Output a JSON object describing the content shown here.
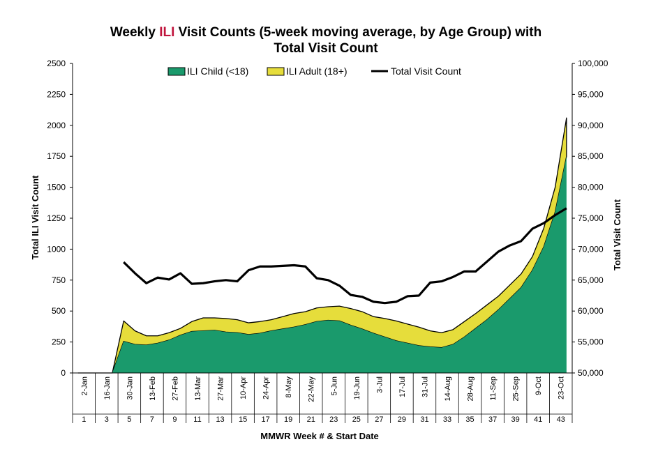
{
  "chart_data": {
    "type": "area",
    "title": {
      "part1": "Weekly ",
      "highlight": "ILI",
      "part2": " Visit Counts (5-week moving average, by Age Group) with",
      "line2": "Total Visit Count"
    },
    "highlight_color": "#c0143c",
    "xlabel": "MMWR Week # & Start Date",
    "ylabel_left": "Total ILI Visit Count",
    "ylabel_right": "Total Visit Count",
    "ylim_left": [
      0,
      2500
    ],
    "ylim_right": [
      50000,
      100000
    ],
    "yticks_left": [
      "0",
      "250",
      "500",
      "750",
      "1000",
      "1250",
      "1500",
      "1750",
      "2000",
      "2250",
      "2500"
    ],
    "yticks_right": [
      "50,000",
      "55,000",
      "60,000",
      "65,000",
      "70,000",
      "75,000",
      "80,000",
      "85,000",
      "90,000",
      "95,000",
      "100,000"
    ],
    "grid": false,
    "legend_position": "top",
    "weeks": [
      1,
      2,
      3,
      4,
      5,
      6,
      7,
      8,
      9,
      10,
      11,
      12,
      13,
      14,
      15,
      16,
      17,
      18,
      19,
      20,
      21,
      22,
      23,
      24,
      25,
      26,
      27,
      28,
      29,
      30,
      31,
      32,
      33,
      34,
      35,
      36,
      37,
      38,
      39,
      40,
      41,
      42,
      43,
      44
    ],
    "date_labels": [
      {
        "week": 1,
        "label": "2-Jan"
      },
      {
        "week": 3,
        "label": "16-Jan"
      },
      {
        "week": 5,
        "label": "30-Jan"
      },
      {
        "week": 7,
        "label": "13-Feb"
      },
      {
        "week": 9,
        "label": "27-Feb"
      },
      {
        "week": 11,
        "label": "13-Mar"
      },
      {
        "week": 13,
        "label": "27-Mar"
      },
      {
        "week": 15,
        "label": "10-Apr"
      },
      {
        "week": 17,
        "label": "24-Apr"
      },
      {
        "week": 19,
        "label": "8-May"
      },
      {
        "week": 21,
        "label": "22-May"
      },
      {
        "week": 23,
        "label": "5-Jun"
      },
      {
        "week": 25,
        "label": "19-Jun"
      },
      {
        "week": 27,
        "label": "3-Jul"
      },
      {
        "week": 29,
        "label": "17-Jul"
      },
      {
        "week": 31,
        "label": "31-Jul"
      },
      {
        "week": 33,
        "label": "14-Aug"
      },
      {
        "week": 35,
        "label": "28-Aug"
      },
      {
        "week": 37,
        "label": "11-Sep"
      },
      {
        "week": 39,
        "label": "25-Sep"
      },
      {
        "week": 41,
        "label": "9-Oct"
      },
      {
        "week": 43,
        "label": "23-Oct"
      }
    ],
    "week_number_labels": [
      "1",
      "3",
      "5",
      "7",
      "9",
      "11",
      "13",
      "15",
      "17",
      "19",
      "21",
      "23",
      "25",
      "27",
      "29",
      "31",
      "33",
      "35",
      "37",
      "39",
      "41",
      "43"
    ],
    "series": [
      {
        "name": "ILI Child (<18)",
        "kind": "stacked-area",
        "color": "#1a9a6c",
        "values": [
          0,
          0,
          0,
          0,
          255,
          230,
          225,
          240,
          265,
          305,
          335,
          340,
          345,
          330,
          325,
          310,
          320,
          340,
          355,
          370,
          390,
          415,
          425,
          420,
          385,
          355,
          320,
          290,
          260,
          240,
          220,
          210,
          205,
          230,
          290,
          360,
          430,
          510,
          600,
          690,
          830,
          1020,
          1300,
          1750
        ]
      },
      {
        "name": "ILI Adult (18+)",
        "kind": "stacked-area",
        "color": "#e6dd3b",
        "values": [
          0,
          0,
          0,
          0,
          165,
          110,
          75,
          60,
          60,
          55,
          80,
          105,
          100,
          110,
          105,
          95,
          95,
          90,
          100,
          110,
          105,
          110,
          110,
          120,
          135,
          140,
          135,
          150,
          160,
          155,
          150,
          130,
          120,
          120,
          125,
          120,
          120,
          110,
          110,
          110,
          110,
          150,
          200,
          310
        ]
      },
      {
        "name": "Total Visit Count",
        "kind": "line",
        "axis": "right",
        "color": "#000000",
        "values": [
          null,
          null,
          null,
          null,
          67900,
          66100,
          64500,
          65400,
          65100,
          66100,
          64400,
          64500,
          64800,
          65000,
          64800,
          66600,
          67200,
          67200,
          67300,
          67400,
          67200,
          65300,
          65000,
          64100,
          62600,
          62300,
          61500,
          61300,
          61500,
          62400,
          62500,
          64600,
          64800,
          65500,
          66400,
          66400,
          68000,
          69600,
          70600,
          71300,
          73300,
          74200,
          75500,
          76600
        ]
      }
    ]
  }
}
